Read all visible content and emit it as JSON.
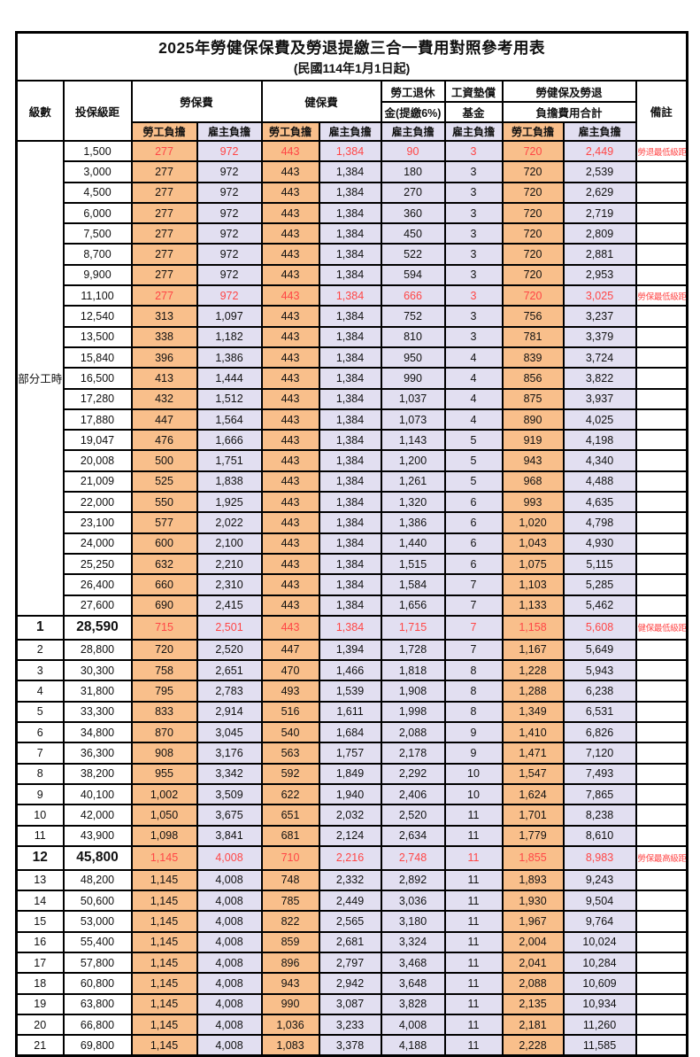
{
  "title": "2025年勞健保保費及勞退提繳三合一費用對照參考用表",
  "subtitle": "(民國114年1月1日起)",
  "columns": {
    "level": "級數",
    "bracket": "投保級距",
    "labor_ins": "勞保費",
    "health_ins": "健保費",
    "pension_line1": "勞工退休",
    "pension_line2": "金(提繳6%)",
    "fund_line1": "工資墊償",
    "fund_line2": "基金",
    "total_line1": "勞健保及勞退",
    "total_line2": "負擔費用合計",
    "remark": "備註",
    "employee_share": "勞工負擔",
    "employer_share": "雇主負擔"
  },
  "part_time_label": "部分工時",
  "colors": {
    "employee_bg": "#F9BF8B",
    "employer_bg": "#E2DFF1",
    "highlight_text": "#FF4646",
    "grid": "#000000"
  },
  "rows": [
    {
      "level": "",
      "bracket": "1,500",
      "values": [
        "277",
        "972",
        "443",
        "1,384",
        "90",
        "3",
        "720",
        "2,449"
      ],
      "remark": "勞退最低級距",
      "highlight": true,
      "emphasis": false
    },
    {
      "level": "",
      "bracket": "3,000",
      "values": [
        "277",
        "972",
        "443",
        "1,384",
        "180",
        "3",
        "720",
        "2,539"
      ],
      "remark": "",
      "highlight": false,
      "emphasis": false
    },
    {
      "level": "",
      "bracket": "4,500",
      "values": [
        "277",
        "972",
        "443",
        "1,384",
        "270",
        "3",
        "720",
        "2,629"
      ],
      "remark": "",
      "highlight": false,
      "emphasis": false
    },
    {
      "level": "",
      "bracket": "6,000",
      "values": [
        "277",
        "972",
        "443",
        "1,384",
        "360",
        "3",
        "720",
        "2,719"
      ],
      "remark": "",
      "highlight": false,
      "emphasis": false
    },
    {
      "level": "",
      "bracket": "7,500",
      "values": [
        "277",
        "972",
        "443",
        "1,384",
        "450",
        "3",
        "720",
        "2,809"
      ],
      "remark": "",
      "highlight": false,
      "emphasis": false
    },
    {
      "level": "",
      "bracket": "8,700",
      "values": [
        "277",
        "972",
        "443",
        "1,384",
        "522",
        "3",
        "720",
        "2,881"
      ],
      "remark": "",
      "highlight": false,
      "emphasis": false
    },
    {
      "level": "",
      "bracket": "9,900",
      "values": [
        "277",
        "972",
        "443",
        "1,384",
        "594",
        "3",
        "720",
        "2,953"
      ],
      "remark": "",
      "highlight": false,
      "emphasis": false
    },
    {
      "level": "",
      "bracket": "11,100",
      "values": [
        "277",
        "972",
        "443",
        "1,384",
        "666",
        "3",
        "720",
        "3,025"
      ],
      "remark": "勞保最低級距",
      "highlight": true,
      "emphasis": false
    },
    {
      "level": "",
      "bracket": "12,540",
      "values": [
        "313",
        "1,097",
        "443",
        "1,384",
        "752",
        "3",
        "756",
        "3,237"
      ],
      "remark": "",
      "highlight": false,
      "emphasis": false
    },
    {
      "level": "",
      "bracket": "13,500",
      "values": [
        "338",
        "1,182",
        "443",
        "1,384",
        "810",
        "3",
        "781",
        "3,379"
      ],
      "remark": "",
      "highlight": false,
      "emphasis": false
    },
    {
      "level": "",
      "bracket": "15,840",
      "values": [
        "396",
        "1,386",
        "443",
        "1,384",
        "950",
        "4",
        "839",
        "3,724"
      ],
      "remark": "",
      "highlight": false,
      "emphasis": false
    },
    {
      "level": "",
      "bracket": "16,500",
      "values": [
        "413",
        "1,444",
        "443",
        "1,384",
        "990",
        "4",
        "856",
        "3,822"
      ],
      "remark": "",
      "highlight": false,
      "emphasis": false
    },
    {
      "level": "",
      "bracket": "17,280",
      "values": [
        "432",
        "1,512",
        "443",
        "1,384",
        "1,037",
        "4",
        "875",
        "3,937"
      ],
      "remark": "",
      "highlight": false,
      "emphasis": false
    },
    {
      "level": "",
      "bracket": "17,880",
      "values": [
        "447",
        "1,564",
        "443",
        "1,384",
        "1,073",
        "4",
        "890",
        "4,025"
      ],
      "remark": "",
      "highlight": false,
      "emphasis": false
    },
    {
      "level": "",
      "bracket": "19,047",
      "values": [
        "476",
        "1,666",
        "443",
        "1,384",
        "1,143",
        "5",
        "919",
        "4,198"
      ],
      "remark": "",
      "highlight": false,
      "emphasis": false
    },
    {
      "level": "",
      "bracket": "20,008",
      "values": [
        "500",
        "1,751",
        "443",
        "1,384",
        "1,200",
        "5",
        "943",
        "4,340"
      ],
      "remark": "",
      "highlight": false,
      "emphasis": false
    },
    {
      "level": "",
      "bracket": "21,009",
      "values": [
        "525",
        "1,838",
        "443",
        "1,384",
        "1,261",
        "5",
        "968",
        "4,488"
      ],
      "remark": "",
      "highlight": false,
      "emphasis": false
    },
    {
      "level": "",
      "bracket": "22,000",
      "values": [
        "550",
        "1,925",
        "443",
        "1,384",
        "1,320",
        "6",
        "993",
        "4,635"
      ],
      "remark": "",
      "highlight": false,
      "emphasis": false
    },
    {
      "level": "",
      "bracket": "23,100",
      "values": [
        "577",
        "2,022",
        "443",
        "1,384",
        "1,386",
        "6",
        "1,020",
        "4,798"
      ],
      "remark": "",
      "highlight": false,
      "emphasis": false
    },
    {
      "level": "",
      "bracket": "24,000",
      "values": [
        "600",
        "2,100",
        "443",
        "1,384",
        "1,440",
        "6",
        "1,043",
        "4,930"
      ],
      "remark": "",
      "highlight": false,
      "emphasis": false
    },
    {
      "level": "",
      "bracket": "25,250",
      "values": [
        "632",
        "2,210",
        "443",
        "1,384",
        "1,515",
        "6",
        "1,075",
        "5,115"
      ],
      "remark": "",
      "highlight": false,
      "emphasis": false
    },
    {
      "level": "",
      "bracket": "26,400",
      "values": [
        "660",
        "2,310",
        "443",
        "1,384",
        "1,584",
        "7",
        "1,103",
        "5,285"
      ],
      "remark": "",
      "highlight": false,
      "emphasis": false
    },
    {
      "level": "",
      "bracket": "27,600",
      "values": [
        "690",
        "2,415",
        "443",
        "1,384",
        "1,656",
        "7",
        "1,133",
        "5,462"
      ],
      "remark": "",
      "highlight": false,
      "emphasis": false
    },
    {
      "level": "1",
      "bracket": "28,590",
      "values": [
        "715",
        "2,501",
        "443",
        "1,384",
        "1,715",
        "7",
        "1,158",
        "5,608"
      ],
      "remark": "健保最低級距",
      "highlight": true,
      "emphasis": true
    },
    {
      "level": "2",
      "bracket": "28,800",
      "values": [
        "720",
        "2,520",
        "447",
        "1,394",
        "1,728",
        "7",
        "1,167",
        "5,649"
      ],
      "remark": "",
      "highlight": false,
      "emphasis": false
    },
    {
      "level": "3",
      "bracket": "30,300",
      "values": [
        "758",
        "2,651",
        "470",
        "1,466",
        "1,818",
        "8",
        "1,228",
        "5,943"
      ],
      "remark": "",
      "highlight": false,
      "emphasis": false
    },
    {
      "level": "4",
      "bracket": "31,800",
      "values": [
        "795",
        "2,783",
        "493",
        "1,539",
        "1,908",
        "8",
        "1,288",
        "6,238"
      ],
      "remark": "",
      "highlight": false,
      "emphasis": false
    },
    {
      "level": "5",
      "bracket": "33,300",
      "values": [
        "833",
        "2,914",
        "516",
        "1,611",
        "1,998",
        "8",
        "1,349",
        "6,531"
      ],
      "remark": "",
      "highlight": false,
      "emphasis": false
    },
    {
      "level": "6",
      "bracket": "34,800",
      "values": [
        "870",
        "3,045",
        "540",
        "1,684",
        "2,088",
        "9",
        "1,410",
        "6,826"
      ],
      "remark": "",
      "highlight": false,
      "emphasis": false
    },
    {
      "level": "7",
      "bracket": "36,300",
      "values": [
        "908",
        "3,176",
        "563",
        "1,757",
        "2,178",
        "9",
        "1,471",
        "7,120"
      ],
      "remark": "",
      "highlight": false,
      "emphasis": false
    },
    {
      "level": "8",
      "bracket": "38,200",
      "values": [
        "955",
        "3,342",
        "592",
        "1,849",
        "2,292",
        "10",
        "1,547",
        "7,493"
      ],
      "remark": "",
      "highlight": false,
      "emphasis": false
    },
    {
      "level": "9",
      "bracket": "40,100",
      "values": [
        "1,002",
        "3,509",
        "622",
        "1,940",
        "2,406",
        "10",
        "1,624",
        "7,865"
      ],
      "remark": "",
      "highlight": false,
      "emphasis": false
    },
    {
      "level": "10",
      "bracket": "42,000",
      "values": [
        "1,050",
        "3,675",
        "651",
        "2,032",
        "2,520",
        "11",
        "1,701",
        "8,238"
      ],
      "remark": "",
      "highlight": false,
      "emphasis": false
    },
    {
      "level": "11",
      "bracket": "43,900",
      "values": [
        "1,098",
        "3,841",
        "681",
        "2,124",
        "2,634",
        "11",
        "1,779",
        "8,610"
      ],
      "remark": "",
      "highlight": false,
      "emphasis": false
    },
    {
      "level": "12",
      "bracket": "45,800",
      "values": [
        "1,145",
        "4,008",
        "710",
        "2,216",
        "2,748",
        "11",
        "1,855",
        "8,983"
      ],
      "remark": "勞保最高級距",
      "highlight": true,
      "emphasis": true
    },
    {
      "level": "13",
      "bracket": "48,200",
      "values": [
        "1,145",
        "4,008",
        "748",
        "2,332",
        "2,892",
        "11",
        "1,893",
        "9,243"
      ],
      "remark": "",
      "highlight": false,
      "emphasis": false
    },
    {
      "level": "14",
      "bracket": "50,600",
      "values": [
        "1,145",
        "4,008",
        "785",
        "2,449",
        "3,036",
        "11",
        "1,930",
        "9,504"
      ],
      "remark": "",
      "highlight": false,
      "emphasis": false
    },
    {
      "level": "15",
      "bracket": "53,000",
      "values": [
        "1,145",
        "4,008",
        "822",
        "2,565",
        "3,180",
        "11",
        "1,967",
        "9,764"
      ],
      "remark": "",
      "highlight": false,
      "emphasis": false
    },
    {
      "level": "16",
      "bracket": "55,400",
      "values": [
        "1,145",
        "4,008",
        "859",
        "2,681",
        "3,324",
        "11",
        "2,004",
        "10,024"
      ],
      "remark": "",
      "highlight": false,
      "emphasis": false
    },
    {
      "level": "17",
      "bracket": "57,800",
      "values": [
        "1,145",
        "4,008",
        "896",
        "2,797",
        "3,468",
        "11",
        "2,041",
        "10,284"
      ],
      "remark": "",
      "highlight": false,
      "emphasis": false
    },
    {
      "level": "18",
      "bracket": "60,800",
      "values": [
        "1,145",
        "4,008",
        "943",
        "2,942",
        "3,648",
        "11",
        "2,088",
        "10,609"
      ],
      "remark": "",
      "highlight": false,
      "emphasis": false
    },
    {
      "level": "19",
      "bracket": "63,800",
      "values": [
        "1,145",
        "4,008",
        "990",
        "3,087",
        "3,828",
        "11",
        "2,135",
        "10,934"
      ],
      "remark": "",
      "highlight": false,
      "emphasis": false
    },
    {
      "level": "20",
      "bracket": "66,800",
      "values": [
        "1,145",
        "4,008",
        "1,036",
        "3,233",
        "4,008",
        "11",
        "2,181",
        "11,260"
      ],
      "remark": "",
      "highlight": false,
      "emphasis": false
    },
    {
      "level": "21",
      "bracket": "69,800",
      "values": [
        "1,145",
        "4,008",
        "1,083",
        "3,378",
        "4,188",
        "11",
        "2,228",
        "11,585"
      ],
      "remark": "",
      "highlight": false,
      "emphasis": false
    }
  ],
  "part_time_row_span": 23,
  "value_column_tints": [
    "emp",
    "er",
    "emp",
    "er",
    "er",
    "er",
    "emp",
    "er"
  ]
}
